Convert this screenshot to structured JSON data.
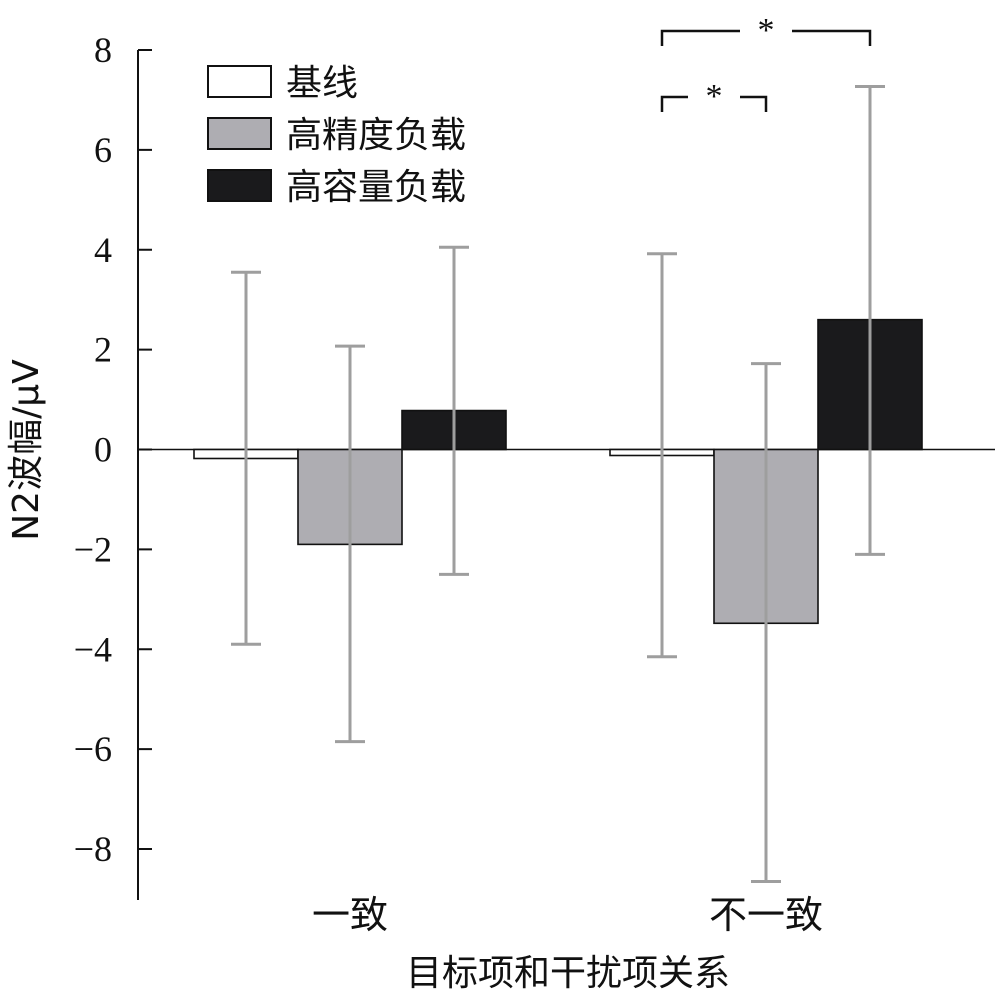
{
  "chart_data": {
    "type": "bar",
    "xlabel": "目标项和干扰项关系",
    "ylabel": "N2波幅/μV",
    "ylim": [
      -9,
      8
    ],
    "yticks": [
      8,
      6,
      4,
      2,
      0,
      -2,
      -4,
      -6,
      -8
    ],
    "ytick_labels": [
      "8",
      "6",
      "4",
      "2",
      "0",
      "−2",
      "−4",
      "−6",
      "−8"
    ],
    "categories": [
      "一致",
      "不一致"
    ],
    "series": [
      {
        "name": "基线",
        "color": "#ffffff",
        "values": [
          -0.18,
          -0.12
        ],
        "err_low": [
          -3.9,
          -4.15
        ],
        "err_high": [
          3.55,
          3.92
        ]
      },
      {
        "name": "高精度负载",
        "color": "#aeadb2",
        "values": [
          -1.9,
          -3.48
        ],
        "err_low": [
          -5.85,
          -8.65
        ],
        "err_high": [
          2.07,
          1.72
        ]
      },
      {
        "name": "高容量负载",
        "color": "#1a1a1c",
        "values": [
          0.78,
          2.6
        ],
        "err_low": [
          -2.5,
          -2.1
        ],
        "err_high": [
          4.05,
          7.27
        ]
      }
    ],
    "legend_position": "top-left",
    "grid": false,
    "significance": [
      {
        "category": "不一致",
        "from_series": 0,
        "to_series": 1,
        "label": "*"
      },
      {
        "category": "不一致",
        "from_series": 0,
        "to_series": 2,
        "label": "*"
      }
    ]
  }
}
